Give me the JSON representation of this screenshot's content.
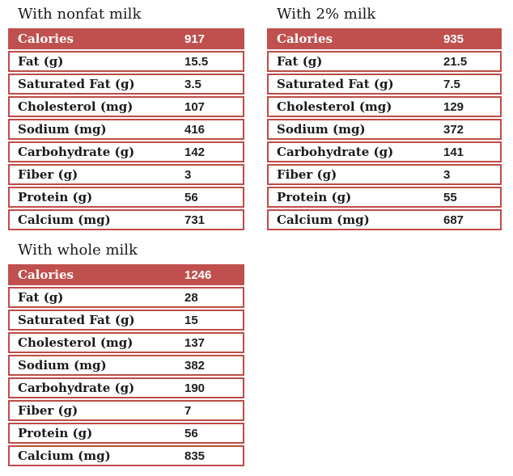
{
  "colors": {
    "header_bg": "#c0504d",
    "row_border": "#bf4b47",
    "header_text": "#ffffff",
    "label_text": "#1a1a1a"
  },
  "tables": [
    {
      "title": "With nonfat milk",
      "header": {
        "label": "Calories",
        "value": "917"
      },
      "rows": [
        {
          "label": "Fat (g)",
          "value": "15.5"
        },
        {
          "label": "Saturated Fat (g)",
          "value": "3.5"
        },
        {
          "label": "Cholesterol (mg)",
          "value": "107"
        },
        {
          "label": "Sodium (mg)",
          "value": "416"
        },
        {
          "label": "Carbohydrate (g)",
          "value": "142"
        },
        {
          "label": "Fiber (g)",
          "value": "3"
        },
        {
          "label": "Protein (g)",
          "value": "56"
        },
        {
          "label": "Calcium (mg)",
          "value": "731"
        }
      ]
    },
    {
      "title": "With 2% milk",
      "header": {
        "label": "Calories",
        "value": "935"
      },
      "rows": [
        {
          "label": "Fat (g)",
          "value": "21.5"
        },
        {
          "label": "Saturated Fat (g)",
          "value": "7.5"
        },
        {
          "label": "Cholesterol (mg)",
          "value": "129"
        },
        {
          "label": "Sodium (mg)",
          "value": "372"
        },
        {
          "label": "Carbohydrate (g)",
          "value": "141"
        },
        {
          "label": "Fiber (g)",
          "value": "3"
        },
        {
          "label": "Protein (g)",
          "value": "55"
        },
        {
          "label": "Calcium (mg)",
          "value": "687"
        }
      ]
    },
    {
      "title": "With whole milk",
      "header": {
        "label": "Calories",
        "value": "1246"
      },
      "rows": [
        {
          "label": "Fat (g)",
          "value": "28"
        },
        {
          "label": "Saturated Fat (g)",
          "value": "15"
        },
        {
          "label": "Cholesterol (mg)",
          "value": "137"
        },
        {
          "label": "Sodium (mg)",
          "value": "382"
        },
        {
          "label": "Carbohydrate (g)",
          "value": "190"
        },
        {
          "label": "Fiber (g)",
          "value": "7"
        },
        {
          "label": "Protein (g)",
          "value": "56"
        },
        {
          "label": "Calcium (mg)",
          "value": "835"
        }
      ]
    }
  ]
}
